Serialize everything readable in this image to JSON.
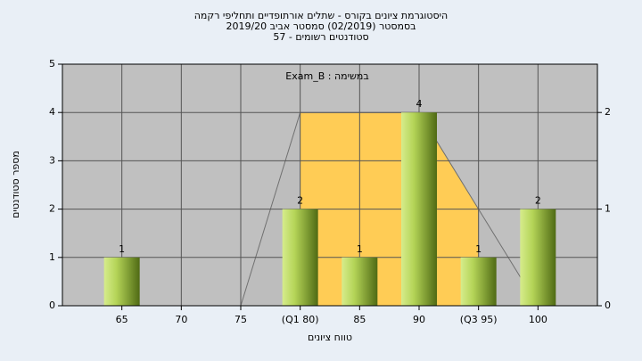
{
  "chart_data": {
    "type": "bar",
    "title": [
      "היסטוגרמת ציונים בקורס - שתלים אורתופדיים ותחליפי רקמה",
      "בסמסטר (02/2019)  סמסטר אביב 2019/20",
      "סטודנטים רשומים - 57"
    ],
    "annotation": "במשימה : Exam_B",
    "xlabel": "טווח ציונים",
    "ylabel": "מספר סטודנטים",
    "x": [
      65,
      70,
      75,
      80,
      85,
      90,
      95,
      100
    ],
    "values": [
      1,
      null,
      null,
      2,
      1,
      4,
      1,
      2
    ],
    "color": "#9bbf3a",
    "xlim": [
      60,
      105
    ],
    "xticks": [
      65,
      70,
      75,
      {
        "value": 80,
        "label": "(Q1 80)"
      },
      85,
      90,
      {
        "value": 95,
        "label": "(Q3 95)"
      },
      100
    ],
    "ylim": [
      0,
      5
    ],
    "yticks": [
      0,
      1,
      2,
      3,
      4,
      5
    ],
    "y2lim": [
      0,
      2.5
    ],
    "y2ticks": [
      0,
      1,
      2
    ],
    "area": {
      "x": [
        75,
        80,
        90,
        95,
        100
      ],
      "values": [
        0,
        2,
        2,
        1,
        0
      ],
      "axis": "y2",
      "color": "#bdbdbd",
      "highlight": [
        80,
        95
      ],
      "highlight_color": "#ffcc55"
    },
    "grid": true
  }
}
